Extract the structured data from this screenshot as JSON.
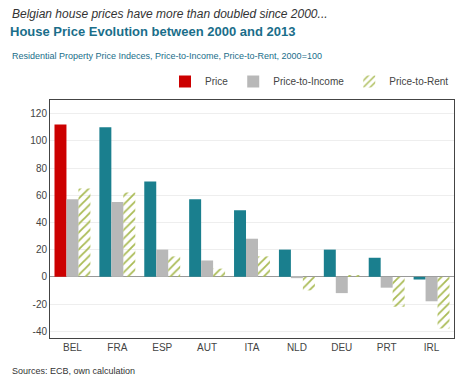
{
  "chart_data": {
    "type": "bar",
    "title": "House Price Evolution between 2000 and 2013",
    "subtitle": "Residential Property Price Indeces, Price-to-Income, Price-to-Rent, 2000=100",
    "annotations": [
      "Belgian house prices have more than doubled since 2000...",
      "Sources: ECB, own calculation"
    ],
    "categories": [
      "BEL",
      "FRA",
      "ESP",
      "AUT",
      "ITA",
      "NLD",
      "DEU",
      "PRT",
      "IRL"
    ],
    "series": [
      {
        "name": "Price",
        "colors": [
          "#cc0000",
          "#1a7f8e",
          "#1a7f8e",
          "#1a7f8e",
          "#1a7f8e",
          "#1a7f8e",
          "#1a7f8e",
          "#1a7f8e",
          "#1a7f8e"
        ],
        "values": [
          112,
          110,
          70,
          57,
          49,
          20,
          20,
          14,
          -2
        ]
      },
      {
        "name": "Price-to-Income",
        "color": "#b8b8b8",
        "values": [
          57,
          55,
          20,
          12,
          28,
          -1,
          -12,
          -8,
          -18
        ]
      },
      {
        "name": "Price-to-Rent",
        "color": "#c8d888",
        "values": [
          65,
          62,
          15,
          6,
          15,
          -10,
          1,
          -22,
          -38
        ]
      }
    ],
    "ylim": [
      -45,
      130
    ],
    "yticks": [
      -40,
      -20,
      0,
      20,
      40,
      60,
      80,
      100,
      120
    ],
    "grid": true,
    "legend": "upper right"
  }
}
